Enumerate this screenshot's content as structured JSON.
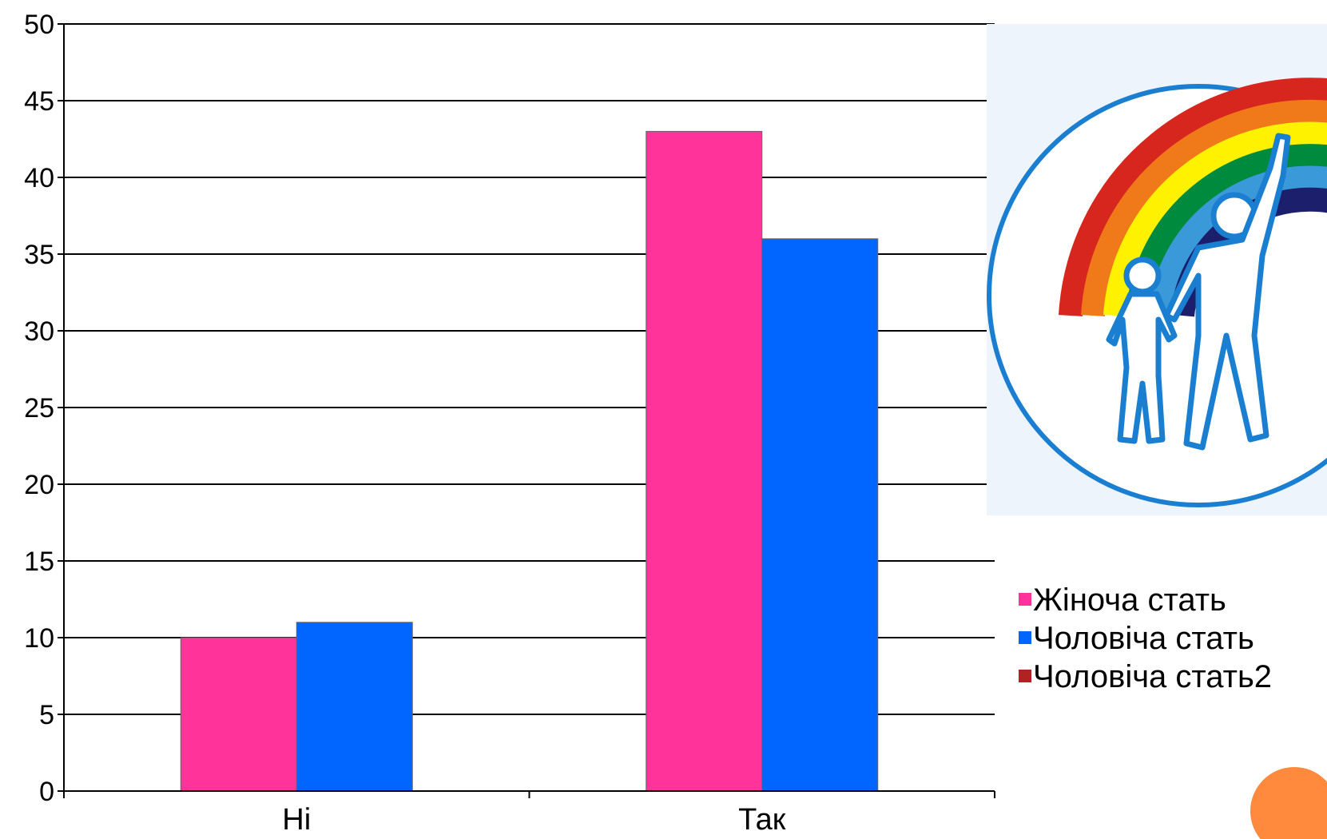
{
  "chart_data": {
    "type": "bar",
    "categories": [
      "Ні",
      "Так"
    ],
    "series": [
      {
        "name": "Жіноча стать",
        "values": [
          10,
          43
        ],
        "color": "#ff3399"
      },
      {
        "name": "Чоловіча стать",
        "values": [
          11,
          36
        ],
        "color": "#0066ff"
      },
      {
        "name": "Чоловіча стать2",
        "values": [
          null,
          null
        ],
        "color": "#b22222"
      }
    ],
    "ylim": [
      0,
      50
    ],
    "yticks": [
      0,
      5,
      10,
      15,
      20,
      25,
      30,
      35,
      40,
      45,
      50
    ],
    "grid": true,
    "legend_position": "right"
  },
  "logo": {
    "icon": "rainbow-family-logo-icon",
    "colors": [
      "#d7261e",
      "#f07a1a",
      "#fff200",
      "#008a3e",
      "#3a9ad9",
      "#1c1f6b"
    ],
    "outline_color": "#1b7fd1"
  },
  "decor": {
    "corner_circle_color": "#ff8a3d"
  }
}
